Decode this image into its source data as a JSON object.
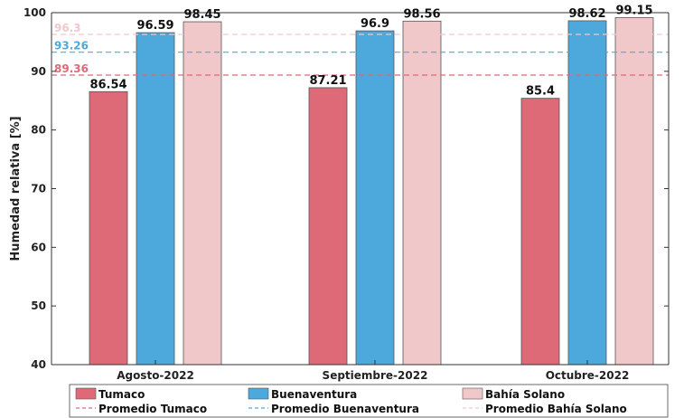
{
  "chart_data": {
    "type": "bar",
    "categories": [
      "Agosto-2022",
      "Septiembre-2022",
      "Octubre-2022"
    ],
    "series": [
      {
        "name": "Tumaco",
        "values": [
          86.54,
          87.21,
          85.4
        ],
        "color": "#dd6a76"
      },
      {
        "name": "Buenaventura",
        "values": [
          96.59,
          96.9,
          98.62
        ],
        "color": "#4da8dc"
      },
      {
        "name": "Bahía Solano",
        "values": [
          98.45,
          98.56,
          99.15
        ],
        "color": "#f0c8c9"
      }
    ],
    "averages": [
      {
        "name": "Promedio Tumaco",
        "value": 89.36,
        "label": "89.36",
        "color": "#dd6a76"
      },
      {
        "name": "Promedio Buenaventura",
        "value": 93.26,
        "label": "93.26",
        "color": "#4da8dc"
      },
      {
        "name": "Promedio Bahía Solano",
        "value": 96.3,
        "label": "96.3",
        "color": "#f0c8c9"
      }
    ],
    "value_labels": [
      [
        "86.54",
        "87.21",
        "85.4"
      ],
      [
        "96.59",
        "96.9",
        "98.62"
      ],
      [
        "98.45",
        "98.56",
        "99.15"
      ]
    ],
    "ylabel": "Humedad relativa [%]",
    "xlabel": "",
    "title": "",
    "ylim": [
      40,
      100
    ],
    "yticks": [
      40,
      50,
      60,
      70,
      80,
      90,
      100
    ],
    "grid": false,
    "legend_position": "bottom",
    "legend_columns": 3
  }
}
